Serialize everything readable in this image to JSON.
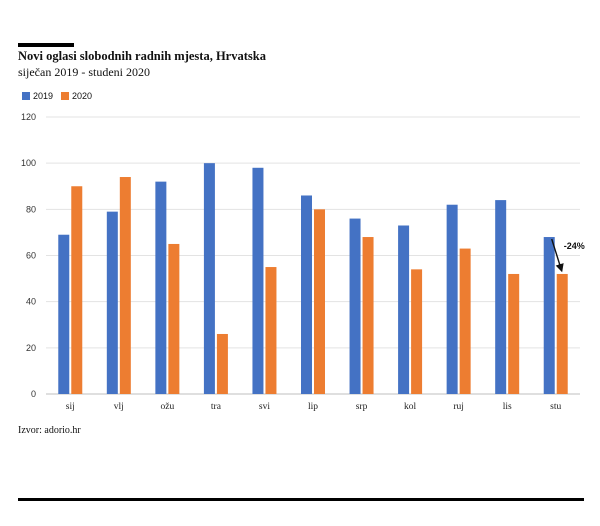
{
  "chart_data": {
    "type": "bar",
    "title": "Novi oglasi slobodnih radnih mjesta, Hrvatska",
    "subtitle": "siječan 2019 - studeni 2020",
    "categories": [
      "sij",
      "vlj",
      "ožu",
      "tra",
      "svi",
      "lip",
      "srp",
      "kol",
      "ruj",
      "lis",
      "stu"
    ],
    "series": [
      {
        "name": "2019",
        "color": "#4472C4",
        "values": [
          69,
          79,
          92,
          100,
          98,
          86,
          76,
          73,
          82,
          84,
          68
        ]
      },
      {
        "name": "2020",
        "color": "#ED7D31",
        "values": [
          90,
          94,
          65,
          26,
          55,
          80,
          68,
          54,
          63,
          52,
          52
        ]
      }
    ],
    "ylim": [
      0,
      120
    ],
    "yticks": [
      0,
      20,
      40,
      60,
      80,
      100,
      120
    ],
    "grid": true,
    "legend_position": "top-left",
    "annotation": {
      "text": "-24%",
      "category": "stu"
    }
  },
  "source": "Izvor: adorio.hr"
}
